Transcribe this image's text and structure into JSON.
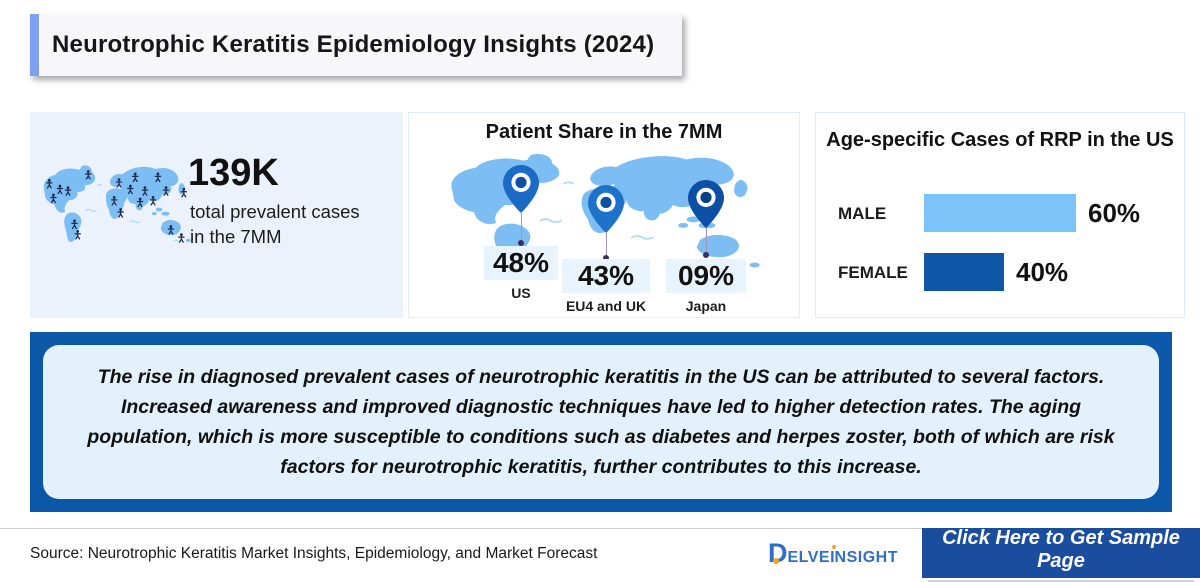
{
  "page_title": "Neurotrophic Keratitis Epidemiology Insights (2024)",
  "panels": {
    "prevalence": {
      "value": "139K",
      "desc_line1": "total prevalent cases",
      "desc_line2": "in the 7MM"
    },
    "patient_share": {
      "title": "Patient Share in the 7MM",
      "items": [
        {
          "value": "48%",
          "label": "US"
        },
        {
          "value": "43%",
          "label": "EU4 and UK"
        },
        {
          "value": "09%",
          "label": "Japan"
        }
      ]
    },
    "age_specific": {
      "title": "Age-specific Cases of RRP in the US",
      "bars": [
        {
          "label": "MALE",
          "value": "60%",
          "color": "#7cc4f8"
        },
        {
          "label": "FEMALE",
          "value": "40%",
          "color": "#0e57a8"
        }
      ]
    }
  },
  "callout": {
    "text": "The rise in diagnosed prevalent cases of neurotrophic keratitis in the US can be attributed to several factors. Increased awareness and improved diagnostic techniques have led to higher detection rates. The aging population, which is more susceptible to conditions such as diabetes and herpes zoster, both of which are risk factors for neurotrophic keratitis, further contributes to this increase."
  },
  "footer": {
    "source": "Source: Neurotrophic Keratitis Market Insights, Epidemiology, and Market Forecast",
    "logo_parts": {
      "d": "D",
      "mid": "ELVE",
      "i": "I",
      "rest": "NSIGHT"
    },
    "cta_label": "Click Here to Get Sample Page"
  },
  "colors": {
    "accent_bar": "#7ea0f0",
    "map_blue": "#7cbdf4",
    "callout_border": "#0b57a8",
    "button_blue": "#1b4d9f",
    "male_bar": "#7cc4f8",
    "female_bar": "#0e57a8"
  },
  "chart_data": [
    {
      "type": "table",
      "title": "Total prevalent cases in the 7MM",
      "value": "139K"
    },
    {
      "type": "bar",
      "title": "Patient Share in the 7MM",
      "categories": [
        "US",
        "EU4 and UK",
        "Japan"
      ],
      "values": [
        48,
        43,
        9
      ],
      "unit": "%",
      "annotation": "map pins over US, Europe and Japan"
    },
    {
      "type": "bar",
      "orientation": "horizontal",
      "title": "Age-specific Cases of RRP in the US",
      "categories": [
        "MALE",
        "FEMALE"
      ],
      "values": [
        60,
        40
      ],
      "unit": "%",
      "colors": [
        "#7cc4f8",
        "#0e57a8"
      ],
      "xlim": [
        0,
        100
      ]
    }
  ]
}
